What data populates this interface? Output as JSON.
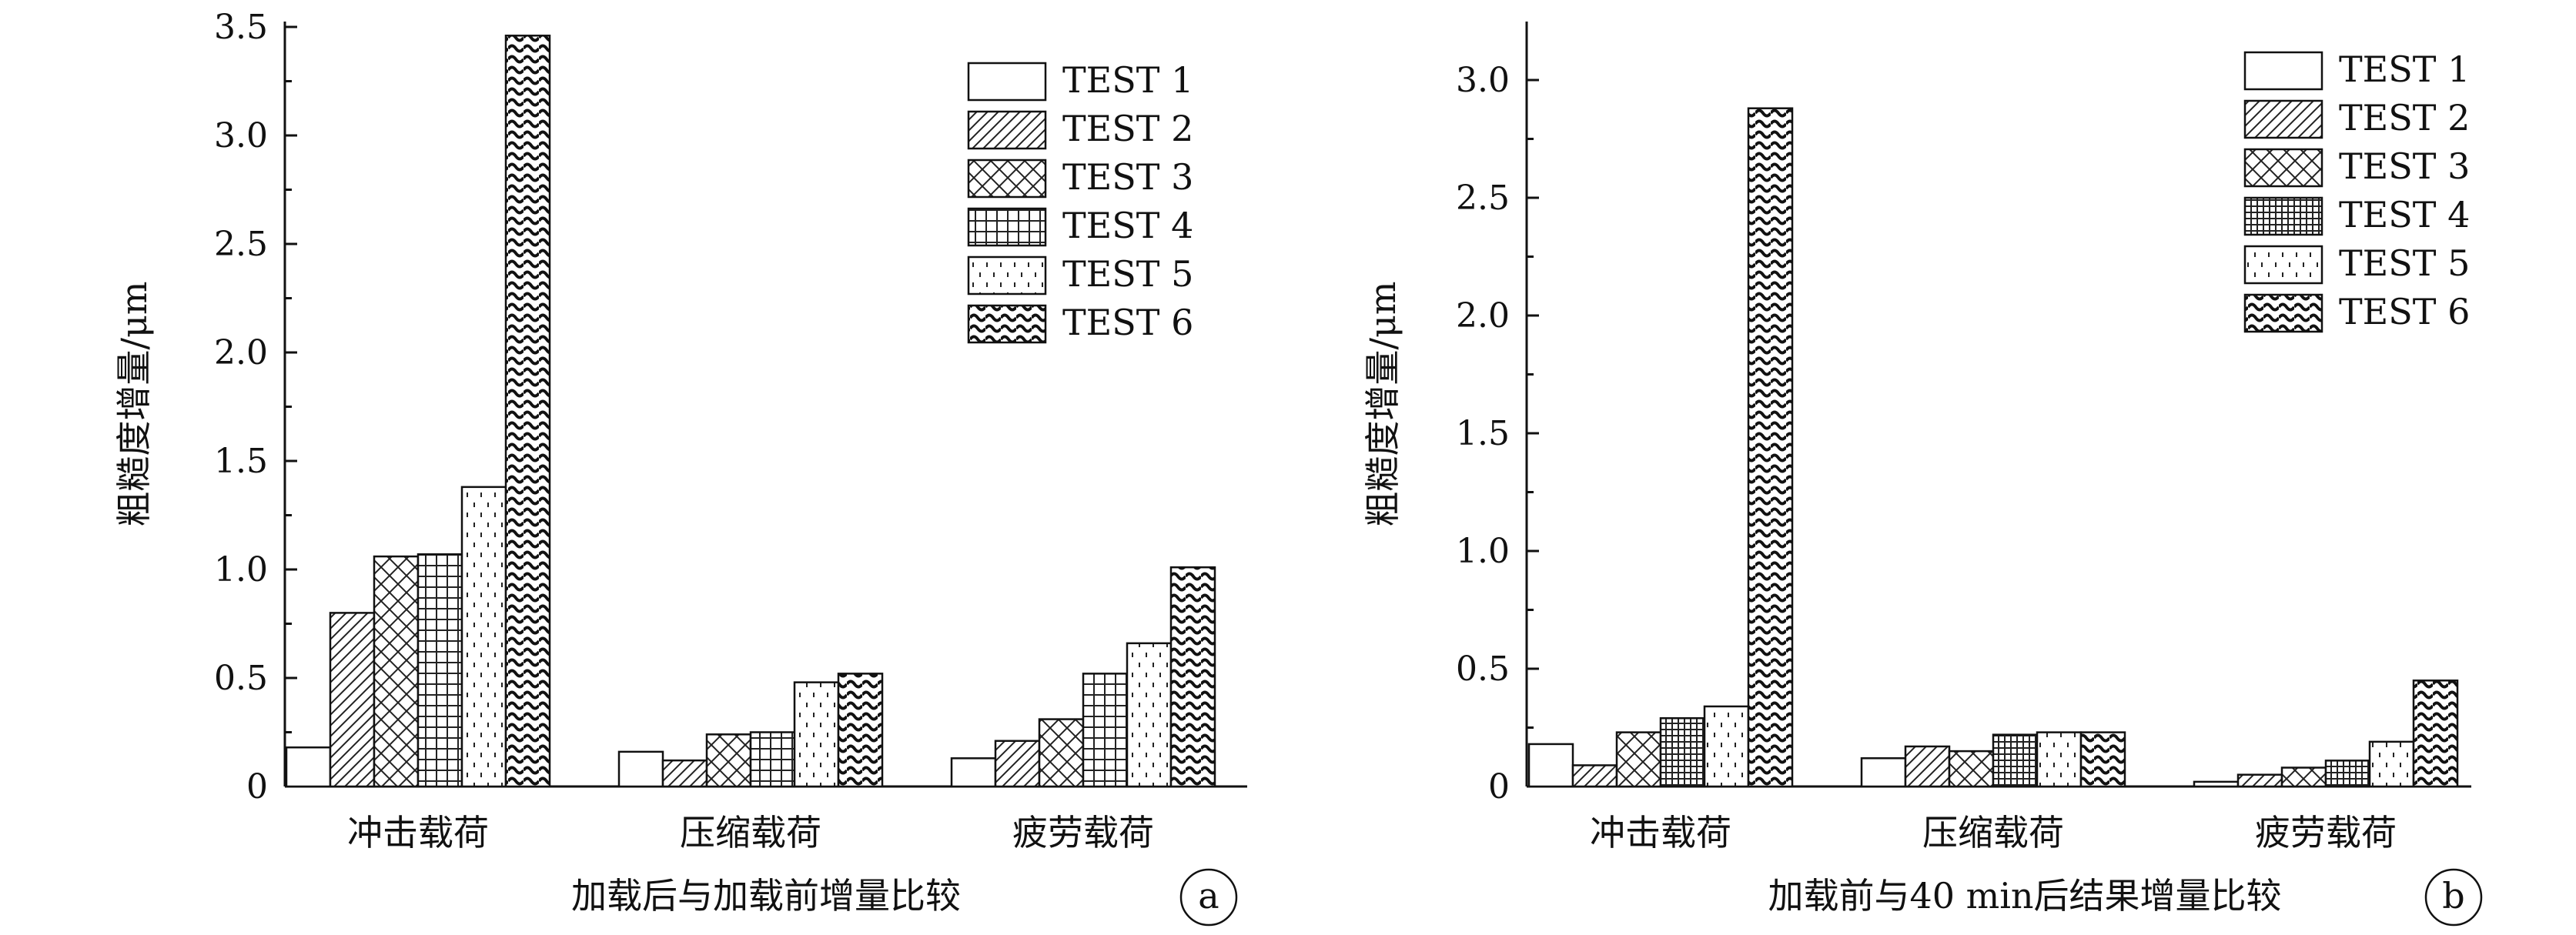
{
  "chart_data": [
    {
      "type": "bar",
      "ylabel": "粗糙度增量/μm",
      "xlabel": "加载后与加载前增量比较",
      "panel_label": "a",
      "categories": [
        "冲击载荷",
        "压缩载荷",
        "疲劳载荷"
      ],
      "ylim": [
        0,
        3.5
      ],
      "yticks": [
        "0",
        "0.5",
        "1.0",
        "1.5",
        "2.0",
        "2.5",
        "3.0",
        "3.5"
      ],
      "legend_position": "top-right",
      "series": [
        {
          "name": "TEST 1",
          "pattern": "blank",
          "values": [
            0.18,
            0.16,
            0.13
          ]
        },
        {
          "name": "TEST 2",
          "pattern": "diagonal",
          "values": [
            0.8,
            0.12,
            0.21
          ]
        },
        {
          "name": "TEST 3",
          "pattern": "crosshatch",
          "values": [
            1.06,
            0.24,
            0.31
          ]
        },
        {
          "name": "TEST 4",
          "pattern": "grid",
          "values": [
            1.07,
            0.25,
            0.52
          ]
        },
        {
          "name": "TEST 5",
          "pattern": "dots",
          "values": [
            1.38,
            0.48,
            0.66
          ]
        },
        {
          "name": "TEST 6",
          "pattern": "wave",
          "values": [
            3.46,
            0.52,
            1.01
          ]
        }
      ]
    },
    {
      "type": "bar",
      "ylabel": "粗糙度增量/μm",
      "xlabel": "加载前与40 min后结果增量比较",
      "panel_label": "b",
      "categories": [
        "冲击载荷",
        "压缩载荷",
        "疲劳载荷"
      ],
      "ylim": [
        0,
        3.25
      ],
      "yticks": [
        "0",
        "0.5",
        "1.0",
        "1.5",
        "2.0",
        "2.5",
        "3.0"
      ],
      "legend_position": "top-right",
      "series": [
        {
          "name": "TEST 1",
          "pattern": "blank",
          "values": [
            0.18,
            0.12,
            0.02
          ]
        },
        {
          "name": "TEST 2",
          "pattern": "diagonal",
          "values": [
            0.09,
            0.17,
            0.05
          ]
        },
        {
          "name": "TEST 3",
          "pattern": "crosshatch",
          "values": [
            0.23,
            0.15,
            0.08
          ]
        },
        {
          "name": "TEST 4",
          "pattern": "grid-dense",
          "values": [
            0.29,
            0.22,
            0.11
          ]
        },
        {
          "name": "TEST 5",
          "pattern": "dots",
          "values": [
            0.34,
            0.23,
            0.19
          ]
        },
        {
          "name": "TEST 6",
          "pattern": "wave",
          "values": [
            2.88,
            0.23,
            0.45
          ]
        }
      ]
    }
  ]
}
